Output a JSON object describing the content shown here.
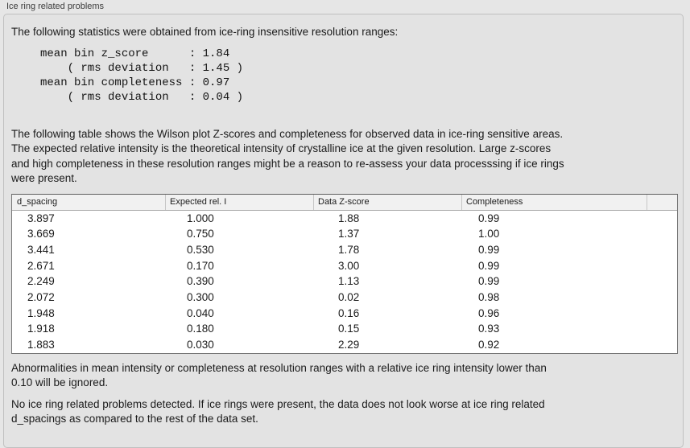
{
  "panel": {
    "title": "Ice ring related problems"
  },
  "intro": "The following statistics were obtained from ice-ring insensitive resolution ranges:",
  "stats": {
    "lines": [
      "mean bin z_score      : 1.84",
      "    ( rms deviation   : 1.45 )",
      "mean bin completeness : 0.97",
      "    ( rms deviation   : 0.04 )"
    ]
  },
  "description": {
    "lines": [
      "The following table shows the Wilson plot Z-scores and completeness for observed data in ice-ring sensitive areas.",
      "The expected relative intensity is the theoretical intensity of crystalline ice at the given resolution. Large z-scores",
      "and high completeness in these resolution ranges might be a reason to re-assess your data processsing if ice rings",
      "were present."
    ]
  },
  "table": {
    "columns": [
      "d_spacing",
      "Expected rel. I",
      "Data Z-score",
      "Completeness",
      ""
    ],
    "rows": [
      [
        "3.897",
        "1.000",
        "1.88",
        "0.99"
      ],
      [
        "3.669",
        "0.750",
        "1.37",
        "1.00"
      ],
      [
        "3.441",
        "0.530",
        "1.78",
        "0.99"
      ],
      [
        "2.671",
        "0.170",
        "3.00",
        "0.99"
      ],
      [
        "2.249",
        "0.390",
        "1.13",
        "0.99"
      ],
      [
        "2.072",
        "0.300",
        "0.02",
        "0.98"
      ],
      [
        "1.948",
        "0.040",
        "0.16",
        "0.96"
      ],
      [
        "1.918",
        "0.180",
        "0.15",
        "0.93"
      ],
      [
        "1.883",
        "0.030",
        "2.29",
        "0.92"
      ]
    ]
  },
  "notes": {
    "ignore_rule": {
      "lines": [
        "Abnormalities in mean intensity or completeness at resolution ranges with a relative ice ring intensity lower than",
        "0.10 will be ignored."
      ]
    },
    "conclusion": {
      "lines": [
        "No ice ring related problems detected. If ice rings were present, the data does not look worse at ice ring related",
        "d_spacings as compared to the rest of the data set."
      ]
    }
  }
}
